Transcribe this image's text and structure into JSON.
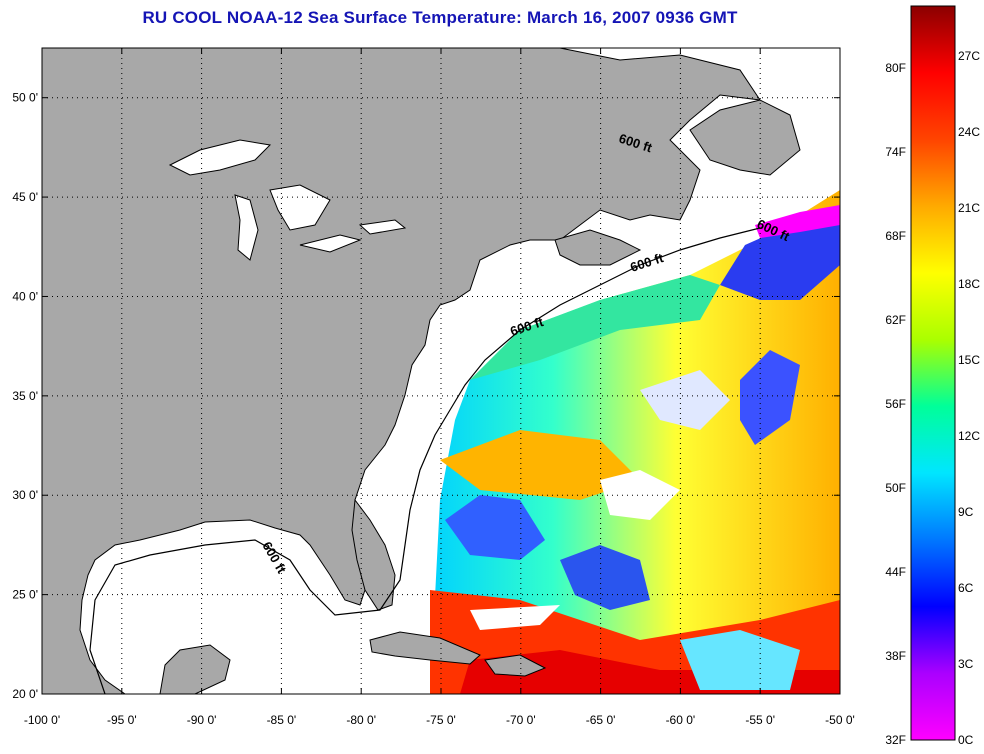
{
  "title": "RU COOL  NOAA-12  Sea Surface Temperature:  March 16, 2007 0936 GMT",
  "map": {
    "lon_range": [
      -100,
      -50
    ],
    "lat_range": [
      20,
      52.5
    ],
    "lon_ticks": [
      "-100 0'",
      "-95 0'",
      "-90 0'",
      "-85 0'",
      "-80 0'",
      "-75 0'",
      "-70 0'",
      "-65 0'",
      "-60 0'",
      "-55 0'",
      "-50 0'"
    ],
    "lat_ticks": [
      "20 0'",
      "25 0'",
      "30 0'",
      "35 0'",
      "40 0'",
      "45 0'",
      "50 0'"
    ],
    "land_color": "#a8a8a8",
    "grid": "dotted",
    "contour_labels": [
      "600 ft",
      "600 ft",
      "600 ft",
      "600 ft",
      "600 ft"
    ]
  },
  "colorbar": {
    "fahrenheit_labels": [
      "80F",
      "74F",
      "68F",
      "62F",
      "56F",
      "50F",
      "44F",
      "38F",
      "32F"
    ],
    "celsius_labels": [
      "27C",
      "24C",
      "21C",
      "18C",
      "15C",
      "12C",
      "9C",
      "6C",
      "3C",
      "0C"
    ],
    "colors": [
      "#ff00ff",
      "#aa00ff",
      "#0000ff",
      "#0078ff",
      "#00e6ff",
      "#00ff99",
      "#aaff00",
      "#ffff00",
      "#ffaa00",
      "#ff4400",
      "#ff0000",
      "#8b0000"
    ]
  }
}
